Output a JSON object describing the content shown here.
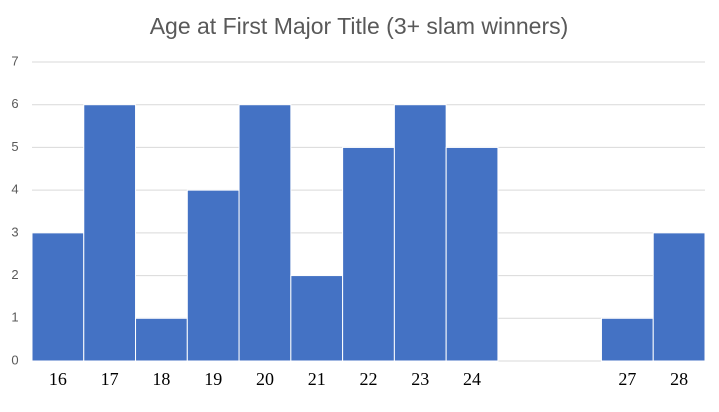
{
  "chart_data": {
    "type": "bar",
    "title": "Age at First Major Title (3+ slam winners)",
    "categories": [
      "16",
      "17",
      "18",
      "19",
      "20",
      "21",
      "22",
      "23",
      "24",
      null,
      null,
      "27",
      "28"
    ],
    "values": [
      3,
      6,
      1,
      4,
      6,
      2,
      5,
      6,
      5,
      null,
      null,
      1,
      3
    ],
    "color": "#4472c4",
    "ylim": [
      0,
      7
    ],
    "yticks": [
      0,
      1,
      2,
      3,
      4,
      5,
      6,
      7
    ],
    "grid": true
  }
}
